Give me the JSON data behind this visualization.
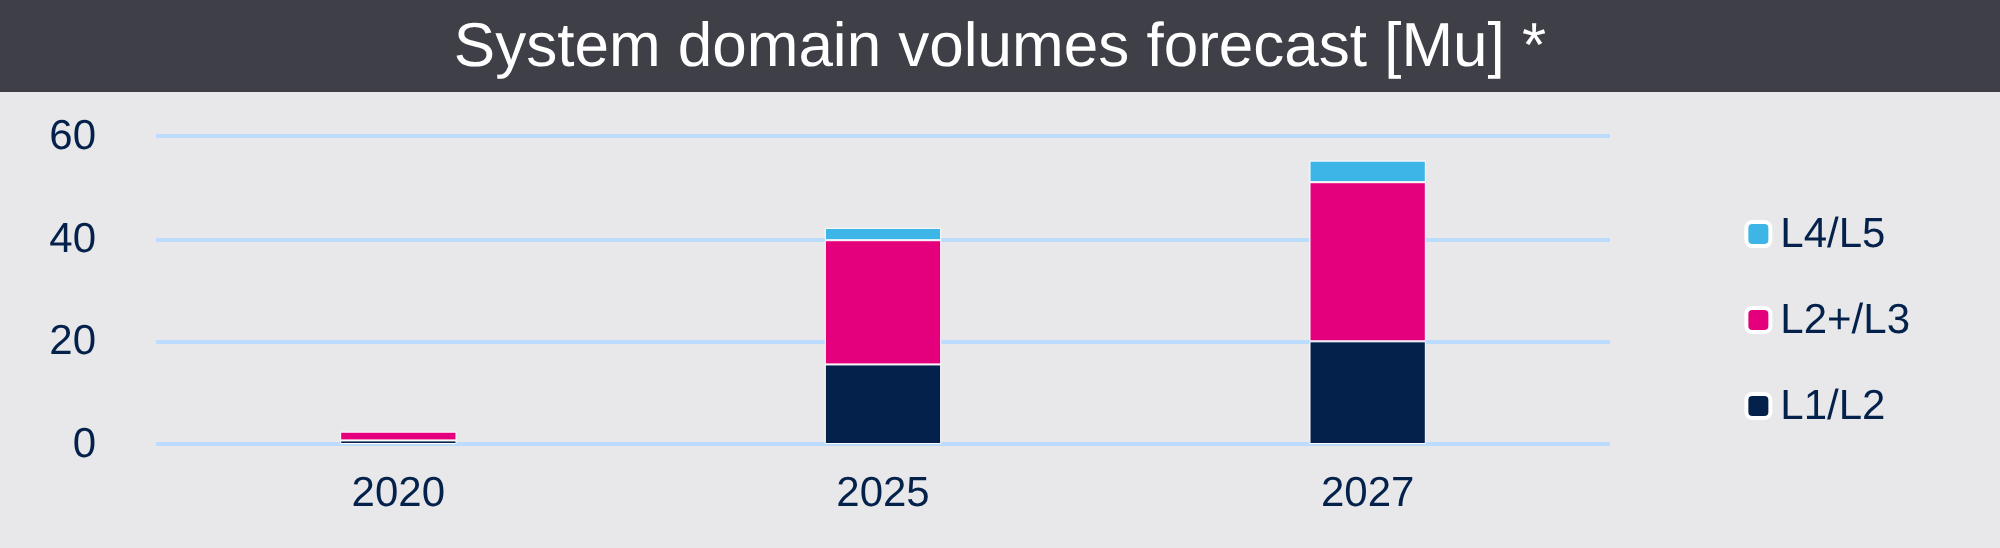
{
  "chart_data": {
    "type": "bar",
    "title": "System domain volumes forecast [Mu] *",
    "categories": [
      "2020",
      "2025",
      "2027"
    ],
    "stacked": true,
    "series": [
      {
        "name": "L1/L2",
        "color": "#03214a",
        "values": [
          0.7,
          15.5,
          20
        ]
      },
      {
        "name": "L2+/L3",
        "color": "#e4007c",
        "values": [
          1.7,
          24.2,
          31
        ]
      },
      {
        "name": "L4/L5",
        "color": "#3db5e6",
        "values": [
          null,
          2.4,
          4.2
        ]
      }
    ],
    "ylim": [
      0,
      60
    ],
    "yticks": [
      0,
      20,
      40,
      60
    ],
    "grid": "y",
    "legend": "right"
  }
}
